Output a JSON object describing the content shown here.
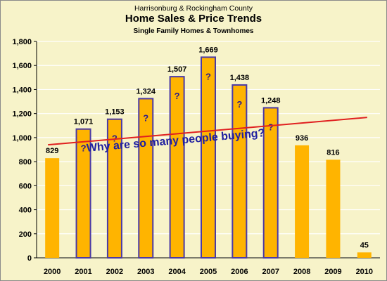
{
  "chart_data": {
    "type": "bar",
    "supertitle": "Harrisonburg & Rockingham County",
    "title": "Home Sales & Price Trends",
    "subtitle": "Single Family Homes & Townhomes",
    "categories": [
      "2000",
      "2001",
      "2002",
      "2003",
      "2004",
      "2005",
      "2006",
      "2007",
      "2008",
      "2009",
      "2010"
    ],
    "values": [
      829,
      1071,
      1153,
      1324,
      1507,
      1669,
      1438,
      1248,
      936,
      816,
      45
    ],
    "value_labels": [
      "829",
      "1,071",
      "1,153",
      "1,324",
      "1,507",
      "1,669",
      "1,438",
      "1,248",
      "936",
      "816",
      "45"
    ],
    "highlighted": [
      false,
      true,
      true,
      true,
      true,
      true,
      true,
      true,
      false,
      false,
      false
    ],
    "highlight_marker": "?",
    "ylim": [
      0,
      1800
    ],
    "yticks": [
      0,
      200,
      400,
      600,
      800,
      1000,
      1200,
      1400,
      1600,
      1800
    ],
    "ytick_labels": [
      "0",
      "200",
      "400",
      "600",
      "800",
      "1,000",
      "1,200",
      "1,400",
      "1,600",
      "1,800"
    ],
    "grid": true,
    "trendline": {
      "start": 940,
      "end": 1168,
      "color": "#e02020"
    },
    "annotation": "Why are so many people buying?",
    "colors": {
      "bar": "#ffb400",
      "highlight_border": "#4b3aa5",
      "marker": "#2b1b8a",
      "annotation": "#1f1fa0",
      "background": "#f7f3c9",
      "grid": "#ffffff"
    }
  }
}
